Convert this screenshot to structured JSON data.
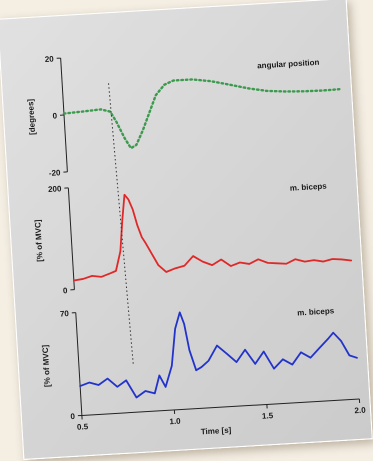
{
  "chart_data": [
    {
      "type": "line",
      "panel": "top",
      "title": "angular position",
      "ylabel": "[degrees]",
      "xlim": [
        0.5,
        2.0
      ],
      "ylim": [
        -20,
        20
      ],
      "yticks": [
        -20,
        0,
        20
      ],
      "line_style": "dotted",
      "series": [
        {
          "color": "#3c9a4e",
          "x": [
            0.5,
            0.6,
            0.7,
            0.75,
            0.78,
            0.82,
            0.85,
            0.88,
            0.92,
            0.96,
            1.0,
            1.05,
            1.1,
            1.2,
            1.3,
            1.4,
            1.5,
            1.6,
            1.7,
            1.8,
            1.9,
            2.0
          ],
          "y": [
            0.5,
            0.8,
            1.2,
            0.2,
            -3.5,
            -9.5,
            -13,
            -12,
            -7,
            -1,
            5,
            8.5,
            9.8,
            9.8,
            8.8,
            7.2,
            5.5,
            4.2,
            3.6,
            3.3,
            3.2,
            3.3
          ]
        }
      ]
    },
    {
      "type": "line",
      "panel": "middle",
      "title": "m. biceps",
      "ylabel": "[% of MVC]",
      "xlim": [
        0.5,
        2.0
      ],
      "ylim": [
        0,
        200
      ],
      "yticks": [
        0,
        200
      ],
      "series": [
        {
          "color": "#e02828",
          "x": [
            0.5,
            0.55,
            0.6,
            0.65,
            0.7,
            0.73,
            0.76,
            0.78,
            0.8,
            0.82,
            0.84,
            0.86,
            0.88,
            0.9,
            0.93,
            0.96,
            1.0,
            1.05,
            1.1,
            1.15,
            1.2,
            1.25,
            1.3,
            1.35,
            1.4,
            1.45,
            1.5,
            1.55,
            1.6,
            1.65,
            1.7,
            1.75,
            1.8,
            1.85,
            1.9,
            1.95,
            2.0
          ],
          "y": [
            18,
            20,
            25,
            22,
            28,
            32,
            70,
            130,
            180,
            170,
            150,
            118,
            95,
            82,
            60,
            38,
            24,
            30,
            34,
            52,
            40,
            32,
            42,
            28,
            34,
            30,
            38,
            30,
            28,
            26,
            34,
            28,
            30,
            26,
            30,
            28,
            25
          ]
        }
      ]
    },
    {
      "type": "line",
      "panel": "bottom",
      "title": "m. biceps",
      "ylabel": "[% of MVC]",
      "xlabel": "Time [s]",
      "xlim": [
        0.5,
        2.0
      ],
      "ylim": [
        0,
        70
      ],
      "xticks": [
        0.5,
        1.0,
        1.5,
        2.0
      ],
      "xtick_labels": [
        "0.5",
        "1.0",
        "1.5",
        "2.0"
      ],
      "yticks": [
        0,
        70
      ],
      "series": [
        {
          "color": "#2233cc",
          "x": [
            0.5,
            0.55,
            0.6,
            0.65,
            0.7,
            0.75,
            0.8,
            0.85,
            0.9,
            0.93,
            0.96,
            1.0,
            1.03,
            1.06,
            1.08,
            1.1,
            1.13,
            1.16,
            1.2,
            1.25,
            1.3,
            1.35,
            1.4,
            1.45,
            1.5,
            1.55,
            1.6,
            1.65,
            1.7,
            1.75,
            1.8,
            1.85,
            1.88,
            1.92,
            1.96,
            2.0
          ],
          "y": [
            20,
            22,
            20,
            24,
            18,
            22,
            10,
            14,
            12,
            24,
            16,
            30,
            55,
            66,
            58,
            40,
            26,
            28,
            32,
            42,
            36,
            30,
            38,
            28,
            36,
            24,
            30,
            26,
            34,
            30,
            36,
            42,
            46,
            40,
            30,
            28
          ]
        }
      ]
    }
  ]
}
